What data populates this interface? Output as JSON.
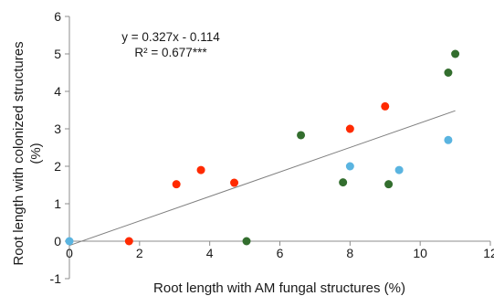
{
  "chart_data": {
    "type": "scatter",
    "title": "",
    "xlabel": "Root length with AM fungal structures (%)",
    "ylabel_lines": [
      "Root length with colonized structures",
      "(%)"
    ],
    "xlim": [
      0,
      12
    ],
    "ylim": [
      -1,
      6
    ],
    "x_ticks": [
      0,
      2,
      4,
      6,
      8,
      10,
      12
    ],
    "y_ticks": [
      -1,
      0,
      1,
      2,
      3,
      4,
      5,
      6
    ],
    "grid": false,
    "legend": "none",
    "annotations": [
      "y = 0.327x - 0.114",
      "R² = 0.677***"
    ],
    "trendline": {
      "slope": 0.327,
      "intercept": -0.114,
      "x_range": [
        0,
        11
      ],
      "color": "#7f7f7f"
    },
    "series": [
      {
        "color": "#ff2a00",
        "points": [
          [
            1.7,
            0.0
          ],
          [
            3.05,
            1.52
          ],
          [
            3.75,
            1.9
          ],
          [
            4.7,
            1.56
          ],
          [
            8.0,
            3.0
          ],
          [
            9.0,
            3.6
          ]
        ]
      },
      {
        "color": "#336e2e",
        "points": [
          [
            5.05,
            0.0
          ],
          [
            6.6,
            2.83
          ],
          [
            7.8,
            1.57
          ],
          [
            9.1,
            1.52
          ],
          [
            10.8,
            4.5
          ],
          [
            11.0,
            5.0
          ]
        ]
      },
      {
        "color": "#5ab4e0",
        "points": [
          [
            0.0,
            0.0
          ],
          [
            8.0,
            2.0
          ],
          [
            9.4,
            1.9
          ],
          [
            10.8,
            2.7
          ]
        ]
      }
    ]
  }
}
